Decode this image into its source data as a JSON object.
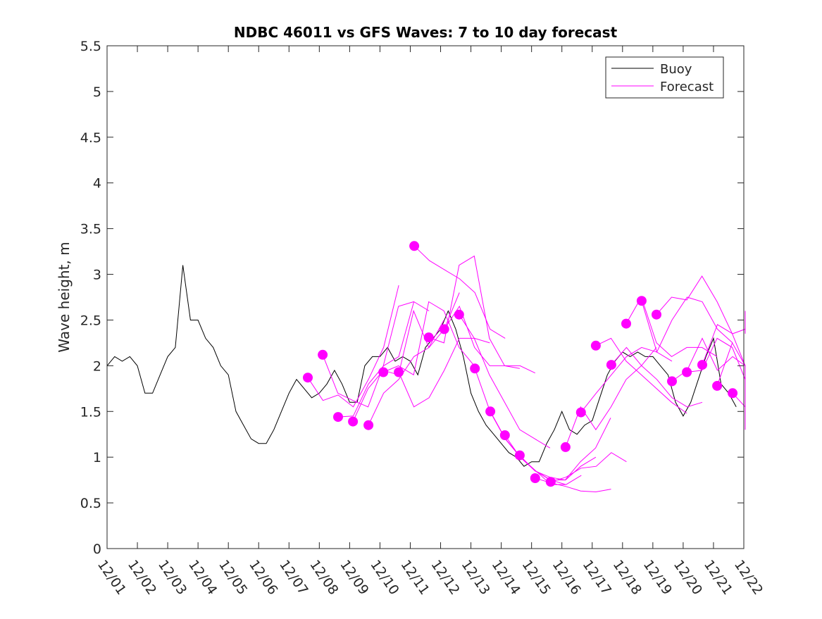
{
  "chart_data": {
    "type": "line",
    "title": "NDBC 46011 vs GFS Waves: 7 to 10 day forecast",
    "xlabel": "",
    "ylabel": "Wave height, m",
    "xlim_days": [
      0,
      21
    ],
    "ylim": [
      0,
      5.5
    ],
    "yticks": [
      "0",
      "0.5",
      "1",
      "1.5",
      "2",
      "2.5",
      "3",
      "3.5",
      "4",
      "4.5",
      "5",
      "5.5"
    ],
    "xticks": [
      "12/01",
      "12/02",
      "12/03",
      "12/04",
      "12/05",
      "12/06",
      "12/07",
      "12/08",
      "12/09",
      "12/10",
      "12/11",
      "12/12",
      "12/13",
      "12/14",
      "12/15",
      "12/16",
      "12/17",
      "12/18",
      "12/19",
      "12/20",
      "12/21",
      "12/22"
    ],
    "legend": {
      "placement": "top-right",
      "entries": [
        "Buoy",
        "Forecast"
      ]
    },
    "colors": {
      "buoy": "#000000",
      "forecast": "#ff00ff"
    },
    "buoy": {
      "step_days": 0.25,
      "start_day": 0,
      "values": [
        2.0,
        2.1,
        2.05,
        2.1,
        2.0,
        1.7,
        1.7,
        1.9,
        2.1,
        2.2,
        3.1,
        2.5,
        2.5,
        2.3,
        2.2,
        2.0,
        1.9,
        1.5,
        1.35,
        1.2,
        1.15,
        1.15,
        1.3,
        1.5,
        1.7,
        1.85,
        1.75,
        1.65,
        1.7,
        1.8,
        1.95,
        1.8,
        1.6,
        1.6,
        2.0,
        2.1,
        2.1,
        2.2,
        2.05,
        2.1,
        2.05,
        1.9,
        2.2,
        2.3,
        2.4,
        2.6,
        2.4,
        2.1,
        1.7,
        1.5,
        1.35,
        1.25,
        1.15,
        1.05,
        1.0,
        0.9,
        0.95,
        0.95,
        1.15,
        1.3,
        1.5,
        1.3,
        1.25,
        1.35,
        1.4,
        1.65,
        1.9,
        2.05,
        2.15,
        2.1,
        2.15,
        2.1,
        2.1,
        2.0,
        1.9,
        1.6,
        1.45,
        1.6,
        1.85,
        2.1,
        2.3,
        1.8,
        1.7,
        1.55
      ]
    },
    "forecasts": {
      "step_days": 0.5,
      "runs": [
        {
          "start_day": 6.62,
          "values": [
            1.87,
            1.62,
            1.68,
            1.55,
            1.85,
            2.2,
            2.88
          ]
        },
        {
          "start_day": 7.11,
          "values": [
            2.12,
            1.7,
            1.62,
            1.55,
            2.0,
            2.65,
            2.7
          ]
        },
        {
          "start_day": 7.62,
          "values": [
            1.44,
            1.45,
            1.8,
            2.0,
            2.1,
            2.7,
            2.6
          ]
        },
        {
          "start_day": 8.11,
          "values": [
            1.39,
            1.75,
            1.95,
            1.9,
            2.6,
            2.2,
            2.5
          ]
        },
        {
          "start_day": 8.62,
          "values": [
            1.35,
            1.7,
            1.85,
            2.1,
            2.2,
            2.4,
            2.8
          ]
        },
        {
          "start_day": 9.11,
          "values": [
            1.93,
            2.0,
            1.9,
            2.7,
            2.6,
            2.2,
            2.0
          ]
        },
        {
          "start_day": 9.62,
          "values": [
            1.93,
            1.55,
            1.65,
            1.95,
            2.3,
            2.3,
            2.25
          ]
        },
        {
          "start_day": 10.13,
          "values": [
            3.31,
            3.15,
            3.05,
            2.95,
            2.8,
            2.4,
            2.3
          ]
        },
        {
          "start_day": 10.61,
          "values": [
            2.31,
            2.25,
            3.1,
            3.2,
            2.3,
            2.0,
            1.97
          ]
        },
        {
          "start_day": 11.12,
          "values": [
            2.4,
            2.65,
            2.2,
            2.0,
            2.0,
            2.0,
            1.92
          ]
        },
        {
          "start_day": 11.61,
          "values": [
            2.56,
            2.3,
            1.9,
            1.6,
            1.3,
            1.2,
            1.1
          ]
        },
        {
          "start_day": 12.13,
          "values": [
            1.97,
            1.5,
            1.2,
            1.0,
            0.85,
            0.75,
            0.7
          ]
        },
        {
          "start_day": 12.64,
          "values": [
            1.5,
            1.2,
            1.0,
            0.85,
            0.7,
            0.7,
            0.8
          ]
        },
        {
          "start_day": 13.12,
          "values": [
            1.24,
            1.0,
            0.85,
            0.75,
            0.75,
            0.9,
            1.0
          ]
        },
        {
          "start_day": 13.61,
          "values": [
            1.02,
            0.85,
            0.78,
            0.75,
            0.95,
            1.1,
            1.43
          ]
        },
        {
          "start_day": 14.12,
          "values": [
            0.77,
            0.72,
            0.68,
            0.63,
            0.62,
            0.65
          ]
        },
        {
          "start_day": 14.63,
          "values": [
            0.73,
            0.78,
            0.88,
            0.9,
            1.05,
            0.95
          ]
        },
        {
          "start_day": 15.12,
          "values": [
            1.11,
            1.55,
            1.3,
            1.55,
            1.85,
            2.0,
            2.2
          ]
        },
        {
          "start_day": 15.63,
          "values": [
            1.49,
            1.7,
            1.9,
            2.1,
            2.2,
            2.15,
            2.05
          ]
        },
        {
          "start_day": 16.12,
          "values": [
            2.22,
            2.3,
            2.05,
            1.9,
            1.75,
            1.6,
            1.48
          ]
        },
        {
          "start_day": 16.63,
          "values": [
            2.01,
            2.2,
            2.0,
            1.85,
            1.65,
            1.55,
            1.6
          ]
        },
        {
          "start_day": 17.12,
          "values": [
            2.46,
            2.75,
            2.25,
            2.1,
            2.2,
            2.2,
            2.1
          ]
        },
        {
          "start_day": 17.63,
          "values": [
            2.71,
            2.15,
            2.5,
            2.75,
            2.7,
            2.4,
            2.25
          ]
        },
        {
          "start_day": 18.12,
          "values": [
            2.56,
            2.75,
            2.72,
            2.98,
            2.7,
            2.35,
            2.0
          ]
        },
        {
          "start_day": 18.63,
          "values": [
            1.83,
            1.95,
            2.3,
            1.95,
            2.1,
            2.0,
            1.75
          ]
        },
        {
          "start_day": 19.12,
          "values": [
            1.93,
            1.95,
            2.3,
            2.2,
            1.85,
            1.6,
            1.45
          ]
        },
        {
          "start_day": 19.63,
          "values": [
            2.01,
            2.45,
            2.35,
            2.4,
            2.35,
            2.5,
            2.6
          ]
        },
        {
          "start_day": 20.12,
          "values": [
            1.78,
            2.25,
            2.0,
            1.6,
            1.35
          ]
        },
        {
          "start_day": 20.63,
          "values": [
            1.7,
            1.55,
            1.3
          ]
        }
      ]
    }
  }
}
